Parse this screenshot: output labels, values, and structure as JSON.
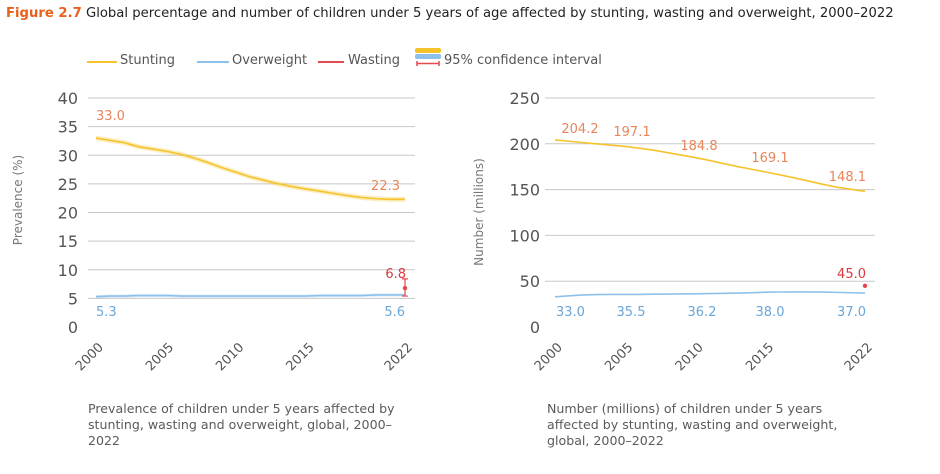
{
  "figure": {
    "label": "Figure 2.7",
    "title": "Global percentage and number of children under 5 years of age affected by stunting, wasting and overweight, 2000–2022"
  },
  "legend": [
    {
      "name": "Stunting",
      "color": "#f5c32c"
    },
    {
      "name": "Overweight",
      "color": "#8ec1ea"
    },
    {
      "name": "Wasting",
      "color": "#e5484d"
    },
    {
      "name": "95% confidence interval",
      "colors": [
        "#f5c32c",
        "#8ec1ea",
        "#e5484d"
      ]
    }
  ],
  "colors": {
    "stunting": "#f5c32c",
    "overweight": "#8ec1ea",
    "wasting": "#e5484d",
    "label_stunting": "#e8855a",
    "label_overweight": "#6aa6d8",
    "label_wasting": "#d9383e",
    "grid": "#c8c8c8",
    "axis_text": "#555555"
  },
  "chart_data": [
    {
      "type": "line",
      "ylabel": "Prevalence (%)",
      "ylim": [
        0,
        40
      ],
      "yticks": [
        0,
        5,
        10,
        15,
        20,
        25,
        30,
        35,
        40
      ],
      "xticks": [
        "2000",
        "2005",
        "2010",
        "2015",
        "2022"
      ],
      "x": [
        2000,
        2001,
        2002,
        2003,
        2004,
        2005,
        2006,
        2007,
        2008,
        2009,
        2010,
        2011,
        2012,
        2013,
        2014,
        2015,
        2016,
        2017,
        2018,
        2019,
        2020,
        2021,
        2022
      ],
      "series": [
        {
          "name": "Stunting",
          "values": [
            33.0,
            32.6,
            32.2,
            31.5,
            31.1,
            30.7,
            30.2,
            29.5,
            28.7,
            27.8,
            27.0,
            26.2,
            25.6,
            25.0,
            24.5,
            24.1,
            23.7,
            23.3,
            22.9,
            22.6,
            22.4,
            22.3,
            22.3
          ]
        },
        {
          "name": "Overweight",
          "values": [
            5.3,
            5.4,
            5.4,
            5.5,
            5.5,
            5.5,
            5.4,
            5.4,
            5.4,
            5.4,
            5.4,
            5.4,
            5.4,
            5.4,
            5.4,
            5.4,
            5.5,
            5.5,
            5.5,
            5.5,
            5.6,
            5.6,
            5.6
          ]
        },
        {
          "name": "Wasting",
          "points": [
            {
              "x": 2022,
              "y": 6.8,
              "ci": [
                5.4,
                8.4
              ]
            }
          ]
        }
      ],
      "data_labels": [
        {
          "text": "33.0",
          "series": "Stunting",
          "x": 2000
        },
        {
          "text": "22.3",
          "series": "Stunting",
          "x": 2022
        },
        {
          "text": "5.3",
          "series": "Overweight",
          "x": 2000
        },
        {
          "text": "5.6",
          "series": "Overweight",
          "x": 2022
        },
        {
          "text": "6.8",
          "series": "Wasting",
          "x": 2022
        }
      ],
      "caption": "Prevalence of children under 5 years affected by stunting, wasting and overweight, global, 2000–2022"
    },
    {
      "type": "line",
      "ylabel": "Number (millions)",
      "ylim": [
        0,
        250
      ],
      "yticks": [
        0,
        50,
        100,
        150,
        200,
        250
      ],
      "xticks": [
        "2000",
        "2005",
        "2010",
        "2015",
        "2022"
      ],
      "x": [
        2000,
        2001,
        2002,
        2003,
        2004,
        2005,
        2006,
        2007,
        2008,
        2009,
        2010,
        2011,
        2012,
        2013,
        2014,
        2015,
        2016,
        2017,
        2018,
        2019,
        2020,
        2021,
        2022
      ],
      "series": [
        {
          "name": "Stunting",
          "values": [
            204.2,
            202.8,
            201.3,
            199.8,
            198.5,
            197.1,
            195.2,
            193.0,
            190.3,
            187.6,
            184.8,
            181.7,
            178.3,
            175.0,
            172.1,
            169.1,
            166.0,
            162.7,
            159.3,
            155.8,
            152.6,
            150.3,
            148.1
          ]
        },
        {
          "name": "Overweight",
          "values": [
            33.0,
            34.0,
            35.0,
            35.4,
            35.5,
            35.5,
            35.6,
            35.8,
            36.0,
            36.1,
            36.2,
            36.5,
            36.8,
            37.1,
            37.5,
            38.0,
            38.2,
            38.3,
            38.3,
            38.1,
            37.8,
            37.4,
            37.0
          ]
        },
        {
          "name": "Wasting",
          "points": [
            {
              "x": 2022,
              "y": 45.0
            }
          ]
        }
      ],
      "data_labels": [
        {
          "text": "204.2",
          "series": "Stunting",
          "x": 2000
        },
        {
          "text": "197.1",
          "series": "Stunting",
          "x": 2005
        },
        {
          "text": "184.8",
          "series": "Stunting",
          "x": 2010
        },
        {
          "text": "169.1",
          "series": "Stunting",
          "x": 2015
        },
        {
          "text": "148.1",
          "series": "Stunting",
          "x": 2022
        },
        {
          "text": "33.0",
          "series": "Overweight",
          "x": 2000
        },
        {
          "text": "35.5",
          "series": "Overweight",
          "x": 2005
        },
        {
          "text": "36.2",
          "series": "Overweight",
          "x": 2010
        },
        {
          "text": "38.0",
          "series": "Overweight",
          "x": 2015
        },
        {
          "text": "37.0",
          "series": "Overweight",
          "x": 2022
        },
        {
          "text": "45.0",
          "series": "Wasting",
          "x": 2022
        }
      ],
      "caption": "Number (millions) of children under 5 years affected by stunting, wasting and overweight, global, 2000–2022"
    }
  ]
}
